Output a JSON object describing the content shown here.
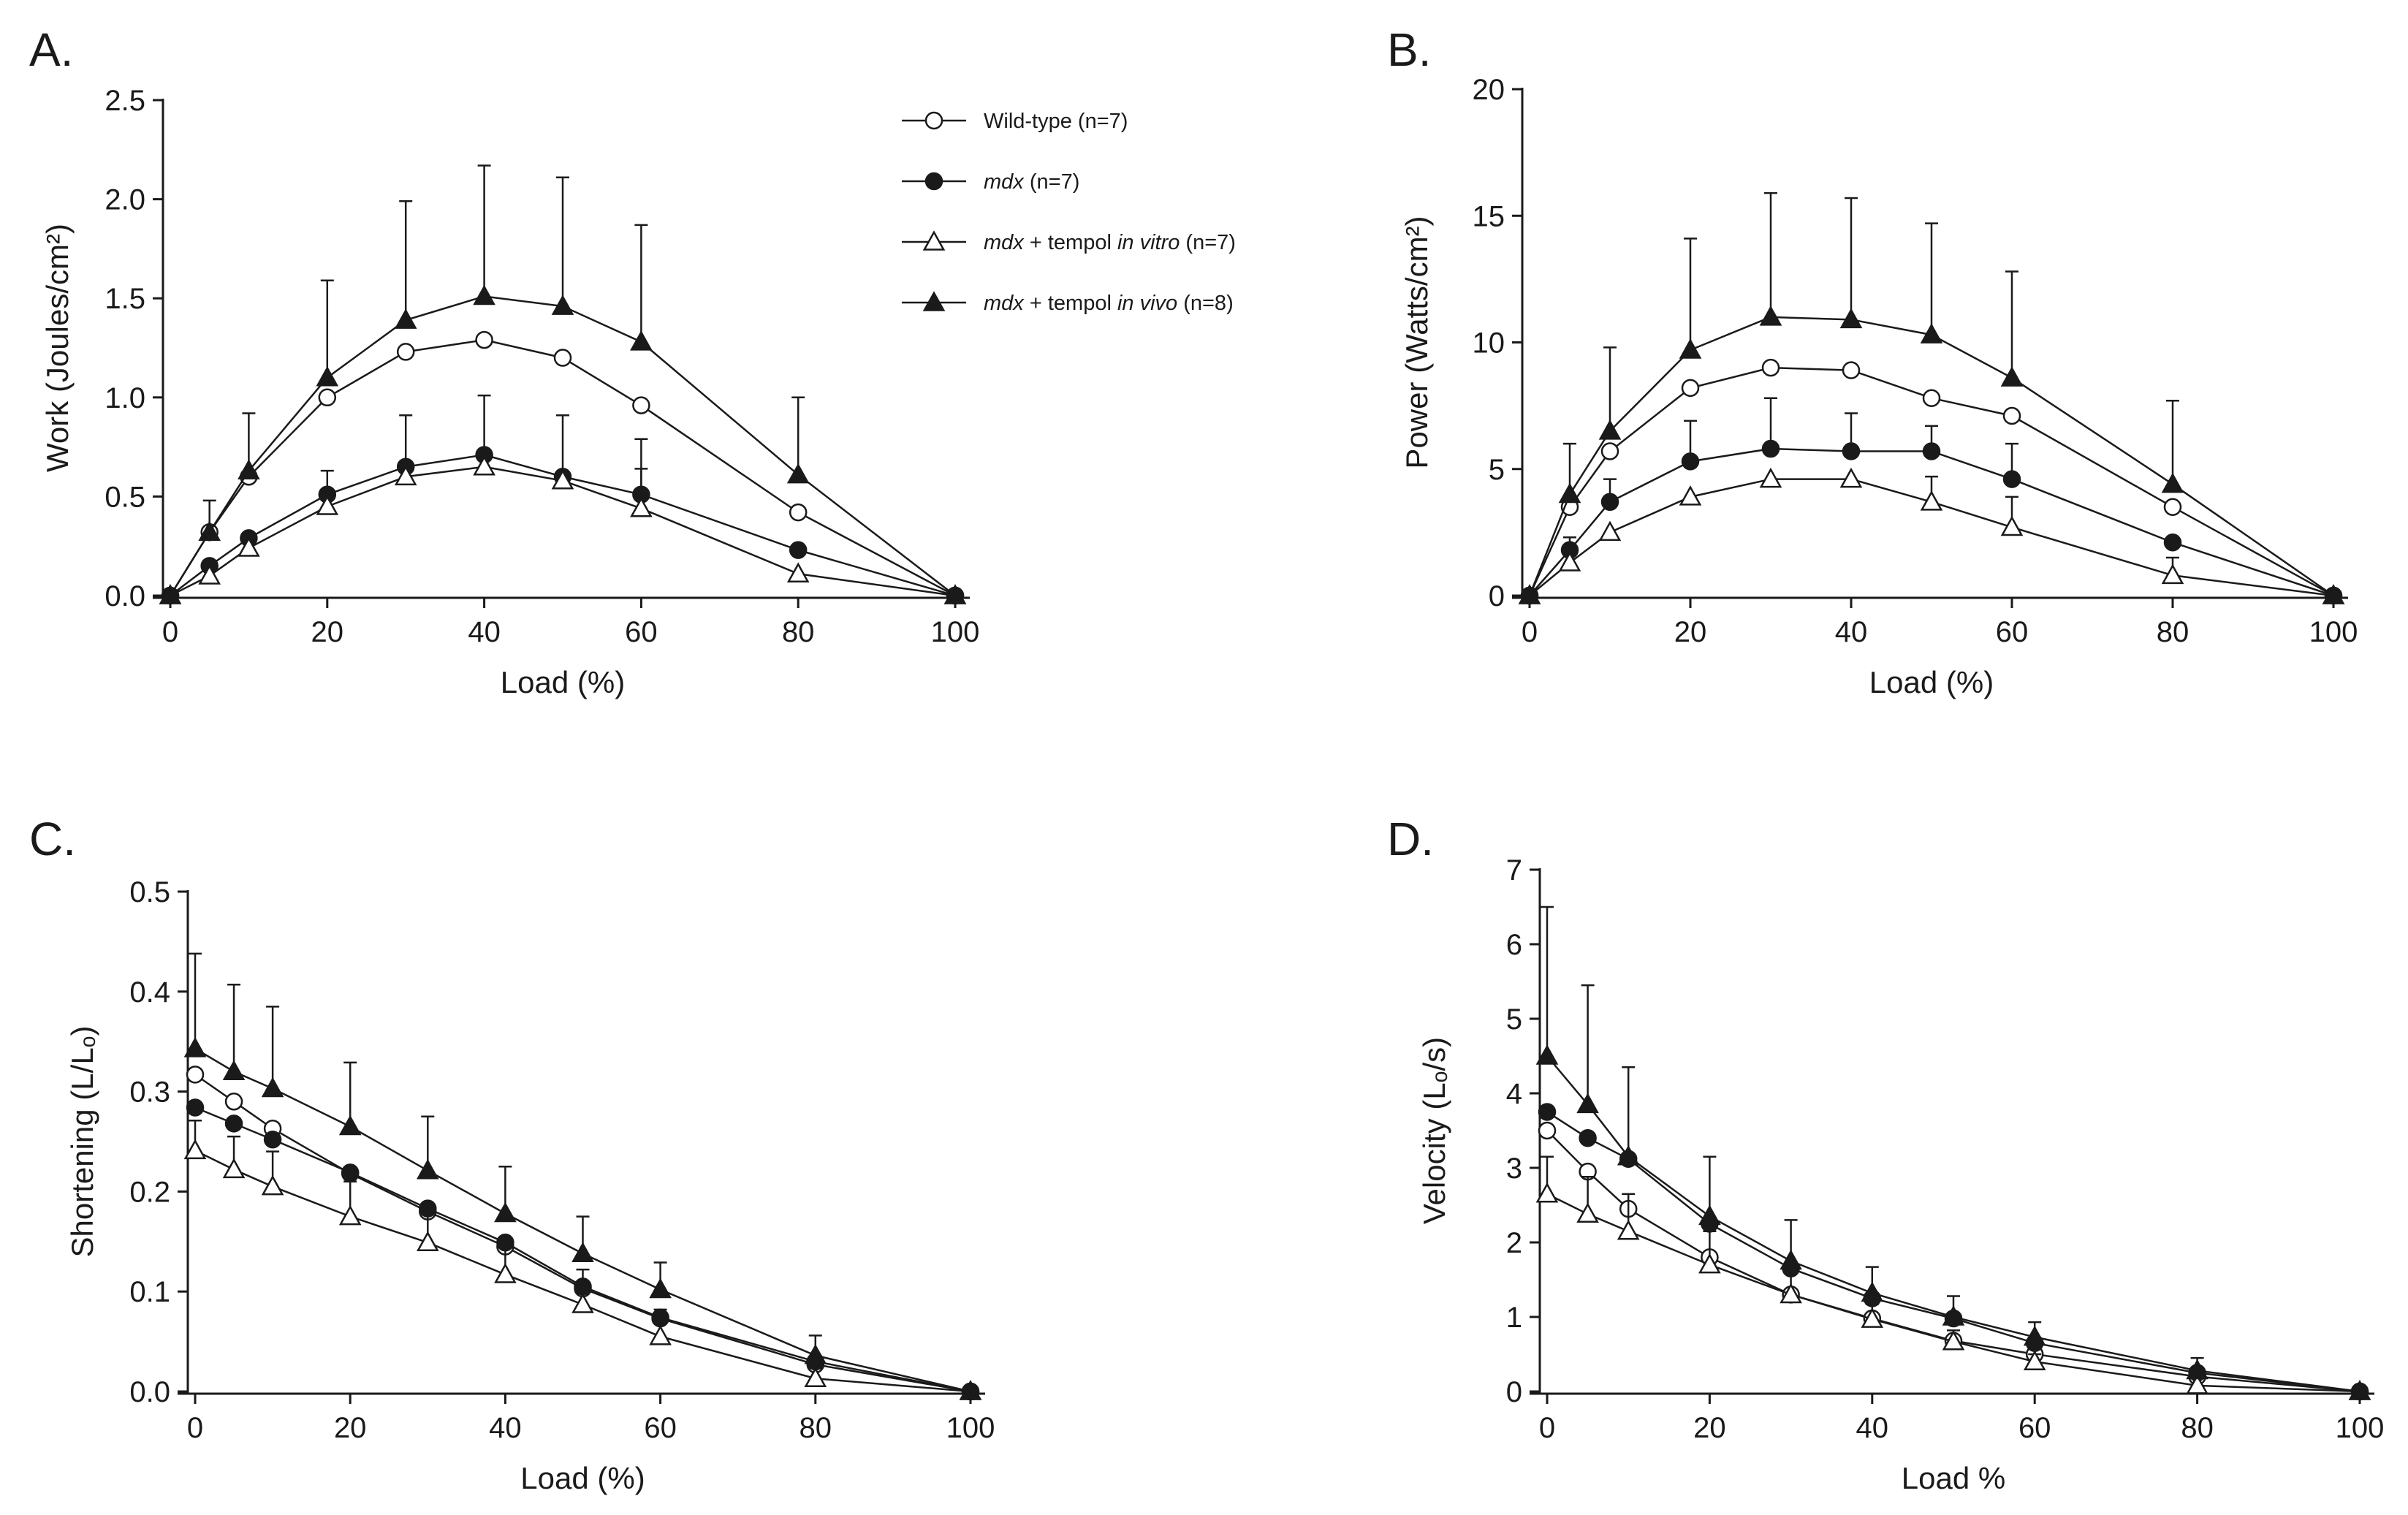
{
  "chart_data": [
    {
      "type": "line",
      "panel": "A.",
      "xlabel": "Load (%)",
      "ylabel": "Work (Joules/cm²)",
      "xlim": [
        0,
        100
      ],
      "ylim": [
        0,
        2.5
      ],
      "xticks": [
        0,
        20,
        40,
        60,
        80,
        100
      ],
      "yticks": [
        0.0,
        0.5,
        1.0,
        1.5,
        2.0,
        2.5
      ],
      "ytick_labels": [
        "0.0",
        "0.5",
        "1.0",
        "1.5",
        "2.0",
        "2.5"
      ],
      "x": [
        0,
        5,
        10,
        20,
        30,
        40,
        50,
        60,
        80,
        100
      ],
      "series": [
        {
          "name": "Wild-type (n=7)",
          "marker": "open-circle",
          "values": [
            0,
            0.32,
            0.6,
            1.0,
            1.23,
            1.29,
            1.2,
            0.96,
            0.42,
            0
          ],
          "err": [
            0,
            0,
            0,
            0,
            0,
            0,
            0,
            0,
            0,
            0
          ]
        },
        {
          "name": "mdx (n=7)",
          "marker": "filled-circle",
          "values": [
            0,
            0.15,
            0.29,
            0.51,
            0.65,
            0.71,
            0.6,
            0.51,
            0.23,
            0
          ],
          "err": [
            0,
            0,
            0,
            0.12,
            0.26,
            0.3,
            0.31,
            0.28,
            0,
            0
          ]
        },
        {
          "name": "mdx + tempol in vitro (n=7)",
          "marker": "open-triangle",
          "values": [
            0,
            0.1,
            0.24,
            0.45,
            0.6,
            0.65,
            0.58,
            0.44,
            0.11,
            0
          ],
          "err": [
            0,
            0,
            0,
            0,
            0,
            0,
            0,
            0.2,
            0,
            0
          ]
        },
        {
          "name": "mdx + tempol in vivo (n=8)",
          "marker": "filled-triangle",
          "values": [
            0,
            0.32,
            0.63,
            1.1,
            1.39,
            1.51,
            1.46,
            1.28,
            0.61,
            0
          ],
          "err": [
            0,
            0.16,
            0.29,
            0.49,
            0.6,
            0.66,
            0.65,
            0.59,
            0.39,
            0
          ]
        }
      ]
    },
    {
      "type": "line",
      "panel": "B.",
      "xlabel": "Load (%)",
      "ylabel": "Power (Watts/cm²)",
      "xlim": [
        0,
        100
      ],
      "ylim": [
        0,
        20
      ],
      "xticks": [
        0,
        20,
        40,
        60,
        80,
        100
      ],
      "yticks": [
        0,
        5,
        10,
        15,
        20
      ],
      "ytick_labels": [
        "0",
        "5",
        "10",
        "15",
        "20"
      ],
      "x": [
        0,
        5,
        10,
        20,
        30,
        40,
        50,
        60,
        80,
        100
      ],
      "series": [
        {
          "name": "Wild-type (n=7)",
          "marker": "open-circle",
          "values": [
            0,
            3.5,
            5.7,
            8.2,
            9.0,
            8.9,
            7.8,
            7.1,
            3.5,
            0
          ],
          "err": [
            0,
            0,
            0,
            0,
            0,
            0,
            0,
            0,
            0,
            0
          ]
        },
        {
          "name": "mdx (n=7)",
          "marker": "filled-circle",
          "values": [
            0,
            1.8,
            3.7,
            5.3,
            5.8,
            5.7,
            5.7,
            4.6,
            2.1,
            0
          ],
          "err": [
            0,
            0.5,
            0.9,
            1.6,
            2.0,
            1.5,
            1.0,
            1.4,
            0,
            0
          ]
        },
        {
          "name": "mdx + tempol in vitro (n=7)",
          "marker": "open-triangle",
          "values": [
            0,
            1.3,
            2.5,
            3.9,
            4.6,
            4.6,
            3.7,
            2.7,
            0.8,
            0
          ],
          "err": [
            0,
            0,
            0,
            0,
            0,
            0,
            1.0,
            1.2,
            0.7,
            0
          ]
        },
        {
          "name": "mdx + tempol in vivo (n=8)",
          "marker": "filled-triangle",
          "values": [
            0,
            4.0,
            6.5,
            9.7,
            11.0,
            10.9,
            10.3,
            8.6,
            4.4,
            0
          ],
          "err": [
            0,
            2.0,
            3.3,
            4.4,
            4.9,
            4.8,
            4.4,
            4.2,
            3.3,
            0
          ]
        }
      ]
    },
    {
      "type": "line",
      "panel": "C.",
      "xlabel": "Load (%)",
      "ylabel": "Shortening (L/Lₒ)",
      "xlim": [
        0,
        100
      ],
      "ylim": [
        0,
        0.5
      ],
      "xticks": [
        0,
        20,
        40,
        60,
        80,
        100
      ],
      "yticks": [
        0.0,
        0.1,
        0.2,
        0.3,
        0.4,
        0.5
      ],
      "ytick_labels": [
        "0.0",
        "0.1",
        "0.2",
        "0.3",
        "0.4",
        "0.5"
      ],
      "x": [
        0,
        5,
        10,
        20,
        30,
        40,
        50,
        60,
        80,
        100
      ],
      "series": [
        {
          "name": "Wild-type (n=7)",
          "marker": "open-circle",
          "values": [
            0.317,
            0.29,
            0.263,
            0.218,
            0.18,
            0.145,
            0.103,
            0.073,
            0.027,
            0
          ],
          "err": [
            0,
            0,
            0,
            0,
            0,
            0,
            0,
            0,
            0,
            0
          ]
        },
        {
          "name": "mdx (n=7)",
          "marker": "filled-circle",
          "values": [
            0.284,
            0.268,
            0.252,
            0.219,
            0.183,
            0.149,
            0.105,
            0.074,
            0.03,
            0
          ],
          "err": [
            0,
            0,
            0,
            0,
            0,
            0,
            0,
            0,
            0,
            0
          ]
        },
        {
          "name": "mdx + tempol in vitro (n=7)",
          "marker": "open-triangle",
          "values": [
            0.241,
            0.222,
            0.205,
            0.175,
            0.149,
            0.117,
            0.087,
            0.055,
            0.013,
            0
          ],
          "err": [
            0.03,
            0.033,
            0.035,
            0.035,
            0.036,
            0.033,
            0.035,
            0.027,
            0.01,
            0
          ]
        },
        {
          "name": "mdx + tempol in vivo (n=8)",
          "marker": "filled-triangle",
          "values": [
            0.343,
            0.32,
            0.303,
            0.265,
            0.221,
            0.178,
            0.138,
            0.102,
            0.036,
            0
          ],
          "err": [
            0.095,
            0.087,
            0.082,
            0.064,
            0.054,
            0.047,
            0.037,
            0.027,
            0.02,
            0
          ]
        }
      ]
    },
    {
      "type": "line",
      "panel": "D.",
      "xlabel": "Load %",
      "ylabel": "Velocity (Lₒ/s)",
      "xlim": [
        0,
        100
      ],
      "ylim": [
        0,
        7
      ],
      "xticks": [
        0,
        20,
        40,
        60,
        80,
        100
      ],
      "yticks": [
        0,
        1,
        2,
        3,
        4,
        5,
        6,
        7
      ],
      "ytick_labels": [
        "0",
        "1",
        "2",
        "3",
        "4",
        "5",
        "6",
        "7"
      ],
      "x": [
        0,
        5,
        10,
        20,
        30,
        40,
        50,
        60,
        80,
        100
      ],
      "series": [
        {
          "name": "Wild-type (n=7)",
          "marker": "open-circle",
          "values": [
            3.5,
            2.95,
            2.45,
            1.8,
            1.3,
            0.98,
            0.68,
            0.5,
            0.2,
            0
          ],
          "err": [
            0,
            0,
            0,
            0,
            0,
            0,
            0,
            0,
            0,
            0
          ]
        },
        {
          "name": "mdx (n=7)",
          "marker": "filled-circle",
          "values": [
            3.75,
            3.4,
            3.12,
            2.25,
            1.65,
            1.25,
            0.98,
            0.65,
            0.25,
            0
          ],
          "err": [
            0,
            0,
            0,
            0,
            0,
            0,
            0,
            0,
            0,
            0
          ]
        },
        {
          "name": "mdx + tempol in vitro (n=7)",
          "marker": "open-triangle",
          "values": [
            2.65,
            2.38,
            2.15,
            1.7,
            1.3,
            0.97,
            0.67,
            0.4,
            0.08,
            0
          ],
          "err": [
            0.5,
            0.5,
            0.5,
            0.45,
            0.35,
            0.2,
            0.15,
            0.1,
            0,
            0
          ]
        },
        {
          "name": "mdx + tempol in vivo (n=8)",
          "marker": "filled-triangle",
          "values": [
            4.5,
            3.85,
            3.15,
            2.35,
            1.75,
            1.32,
            1.0,
            0.73,
            0.28,
            0
          ],
          "err": [
            2.0,
            1.6,
            1.2,
            0.8,
            0.55,
            0.35,
            0.28,
            0.2,
            0.17,
            0
          ]
        }
      ]
    }
  ],
  "legend": {
    "entries": [
      {
        "marker": "open-circle",
        "italic1": "",
        "text1": "Wild-type (n=7)",
        "italic2": "",
        "text2": ""
      },
      {
        "marker": "filled-circle",
        "italic1": "mdx",
        "text1": " (n=7)",
        "italic2": "",
        "text2": ""
      },
      {
        "marker": "open-triangle",
        "italic1": "mdx",
        "text1": " + tempol ",
        "italic2": "in vitro",
        "text2": " (n=7)"
      },
      {
        "marker": "filled-triangle",
        "italic1": "mdx",
        "text1": " + tempol ",
        "italic2": "in vivo",
        "text2": " (n=8)"
      }
    ]
  }
}
